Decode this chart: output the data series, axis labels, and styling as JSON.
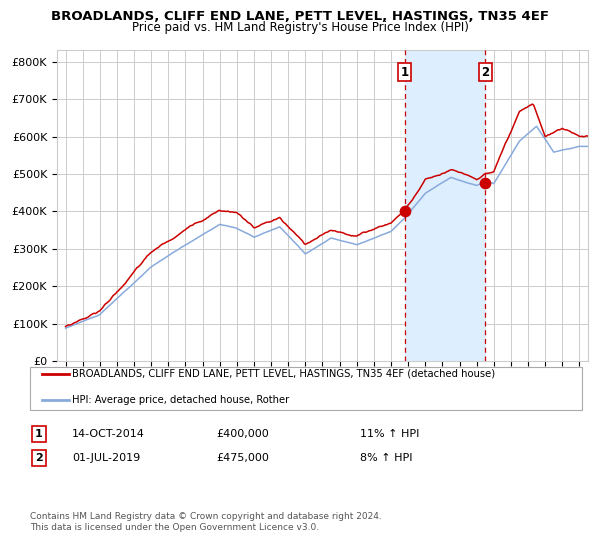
{
  "title": "BROADLANDS, CLIFF END LANE, PETT LEVEL, HASTINGS, TN35 4EF",
  "subtitle": "Price paid vs. HM Land Registry's House Price Index (HPI)",
  "legend_line1": "BROADLANDS, CLIFF END LANE, PETT LEVEL, HASTINGS, TN35 4EF (detached house)",
  "legend_line2": "HPI: Average price, detached house, Rother",
  "annotation1_label": "1",
  "annotation1_date": "14-OCT-2014",
  "annotation1_price": "£400,000",
  "annotation1_hpi": "11% ↑ HPI",
  "annotation2_label": "2",
  "annotation2_date": "01-JUL-2019",
  "annotation2_price": "£475,000",
  "annotation2_hpi": "8% ↑ HPI",
  "footer": "Contains HM Land Registry data © Crown copyright and database right 2024.\nThis data is licensed under the Open Government Licence v3.0.",
  "red_line_color": "#cc0000",
  "blue_line_color": "#88aadd",
  "shade_color": "#ddeeff",
  "dashed_line_color": "#cc0000",
  "grid_color": "#cccccc",
  "background_color": "#ffffff",
  "ylim": [
    0,
    830000
  ],
  "ytick_labels": [
    "£0",
    "£100K",
    "£200K",
    "£300K",
    "£400K",
    "£500K",
    "£600K",
    "£700K",
    "£800K"
  ],
  "ytick_values": [
    0,
    100000,
    200000,
    300000,
    400000,
    500000,
    600000,
    700000,
    800000
  ],
  "sale1_x": 2014.79,
  "sale1_y": 400000,
  "sale2_x": 2019.5,
  "sale2_y": 475000,
  "xlim_start": 1994.5,
  "xlim_end": 2025.5
}
